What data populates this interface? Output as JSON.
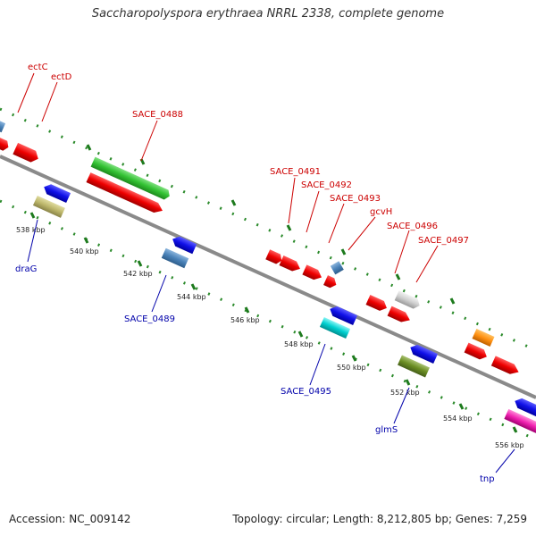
{
  "title": "Saccharopolyspora erythraea NRRL 2338, complete genome",
  "footer": {
    "accession": "Accession: NC_009142",
    "summary": "Topology: circular; Length: 8,212,805 bp; Genes: 7,259"
  },
  "colors": {
    "backbone": "#8a8a8a",
    "dots": "#2a8a2a",
    "forward_label": "#cc0000",
    "reverse_label": "#0000aa"
  },
  "ticks": [
    "538 kbp",
    "540 kbp",
    "542 kbp",
    "544 kbp",
    "546 kbp",
    "548 kbp",
    "550 kbp",
    "552 kbp",
    "554 kbp",
    "556 kbp"
  ],
  "forward_labels": [
    "ectC",
    "ectD",
    "SACE_0488",
    "SACE_0491",
    "SACE_0492",
    "SACE_0493",
    "gcvH",
    "SACE_0496",
    "SACE_0497"
  ],
  "reverse_labels": [
    "draG",
    "SACE_0489",
    "SACE_0495",
    "glmS",
    "tnp"
  ]
}
